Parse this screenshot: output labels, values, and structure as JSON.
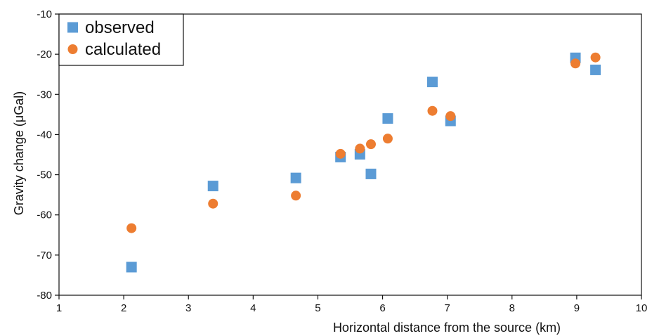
{
  "chart_data": {
    "type": "scatter",
    "title": "",
    "xlabel": "Horizontal distance from the source (km)",
    "ylabel": "Gravity change (μGal)",
    "xlim": [
      1,
      10
    ],
    "ylim": [
      -80,
      -10
    ],
    "xticks": [
      1,
      2,
      3,
      4,
      5,
      6,
      7,
      8,
      9,
      10
    ],
    "yticks": [
      -80,
      -70,
      -60,
      -50,
      -40,
      -30,
      -20,
      -10
    ],
    "grid": false,
    "legend": "top-left",
    "series": [
      {
        "name": "observed",
        "marker": "square",
        "color": "#5b9bd5",
        "x": [
          2.12,
          3.38,
          4.66,
          5.35,
          5.65,
          5.82,
          6.08,
          6.77,
          7.05,
          8.98,
          9.29
        ],
        "y": [
          -73.0,
          -52.8,
          -50.8,
          -45.6,
          -44.9,
          -49.8,
          -36.0,
          -26.9,
          -36.6,
          -20.9,
          -23.9
        ]
      },
      {
        "name": "calculated",
        "marker": "circle",
        "color": "#ed7d31",
        "x": [
          2.12,
          3.38,
          4.66,
          5.35,
          5.65,
          5.82,
          6.08,
          6.77,
          7.05,
          8.98,
          9.29
        ],
        "y": [
          -63.3,
          -57.2,
          -55.2,
          -44.8,
          -43.5,
          -42.4,
          -41.0,
          -34.1,
          -35.4,
          -22.3,
          -20.8
        ]
      }
    ]
  }
}
